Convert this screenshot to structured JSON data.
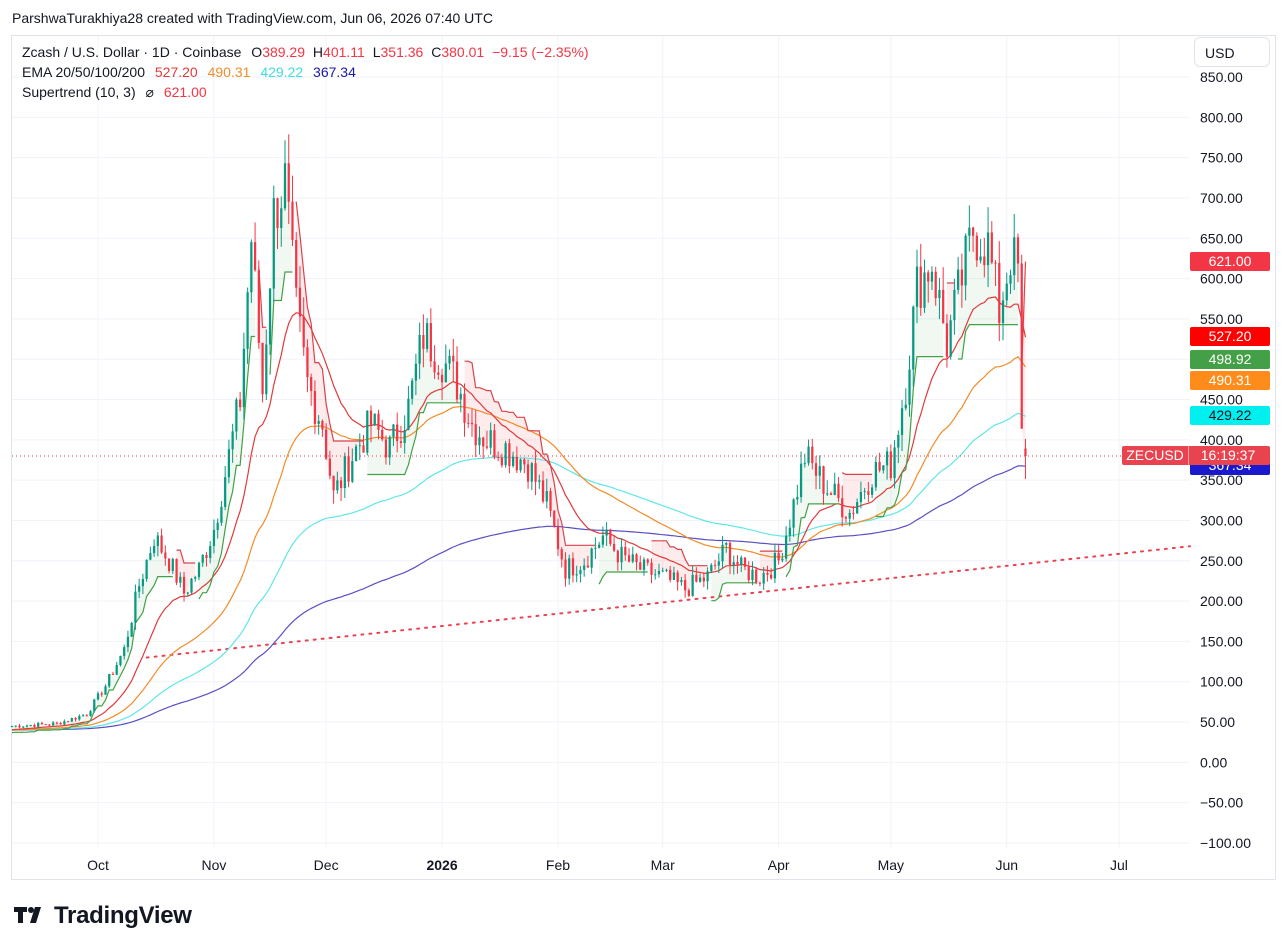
{
  "credit": "ParshwaTurakhiya28 created with TradingView.com, Jun 06, 2026 07:40 UTC",
  "legend": {
    "symbol": "Zcash / U.S. Dollar · 1D · Coinbase",
    "o_label": "O",
    "o_value": "389.29",
    "h_label": "H",
    "h_value": "401.11",
    "l_label": "L",
    "l_value": "351.36",
    "c_label": "C",
    "c_value": "380.01",
    "change": "−9.15 (−2.35%)",
    "ema_label": "EMA 20/50/100/200",
    "ema20": "527.20",
    "ema50": "490.31",
    "ema100": "429.22",
    "ema200": "367.34",
    "st_label": "Supertrend (10, 3)",
    "st_symbol": "⌀",
    "st_value": "621.00"
  },
  "currency": "USD",
  "price_tags": [
    {
      "text": "621.00",
      "color": "#f23645",
      "value": 621
    },
    {
      "text": "527.20",
      "color": "#ff0000",
      "value": 527.2
    },
    {
      "text": "498.92",
      "color": "#43a047",
      "value": 498.92
    },
    {
      "text": "490.31",
      "color": "#ff8c1a",
      "value": 490.31
    },
    {
      "text": "429.22",
      "color": "#00f0f0",
      "value": 429.22
    },
    {
      "text": "367.34",
      "color": "#1a1acc",
      "value": 367.34
    }
  ],
  "last_price_tag": {
    "symbol": "ZECUSD",
    "countdown": "16:19:37",
    "value": 380.01
  },
  "brand": "TradingView",
  "colors": {
    "up": "#089981",
    "down": "#f23645",
    "ema20": "#e03a3a",
    "ema50": "#f28c28",
    "ema100": "#61e6e6",
    "ema200": "#5b4fc4",
    "st_up": "#43a047",
    "st_down": "#d9434a",
    "trendline": "#e8434f"
  },
  "chart_data": {
    "type": "candlestick",
    "title": "Zcash / U.S. Dollar · 1D · Coinbase",
    "y_axis": {
      "min": -100,
      "max": 850,
      "ticks": [
        "850.00",
        "800.00",
        "750.00",
        "700.00",
        "650.00",
        "600.00",
        "550.00",
        "500.00",
        "450.00",
        "400.00",
        "350.00",
        "300.00",
        "250.00",
        "200.00",
        "150.00",
        "100.00",
        "50.00",
        "0.00",
        "−50.00",
        "−100.00"
      ]
    },
    "x_axis": {
      "labels": [
        "Oct",
        "Nov",
        "Dec",
        "2026",
        "Feb",
        "Mar",
        "Apr",
        "May",
        "Jun",
        "Jul"
      ],
      "start": "2025-09-08",
      "end": "2026-07-20"
    },
    "close_path": [
      [
        "2025-09-08",
        45
      ],
      [
        "2025-09-20",
        48
      ],
      [
        "2025-09-28",
        60
      ],
      [
        "2025-10-03",
        95
      ],
      [
        "2025-10-08",
        140
      ],
      [
        "2025-10-12",
        220
      ],
      [
        "2025-10-16",
        280
      ],
      [
        "2025-10-20",
        250
      ],
      [
        "2025-10-24",
        210
      ],
      [
        "2025-10-28",
        240
      ],
      [
        "2025-11-01",
        290
      ],
      [
        "2025-11-05",
        380
      ],
      [
        "2025-11-08",
        450
      ],
      [
        "2025-11-11",
        650
      ],
      [
        "2025-11-14",
        460
      ],
      [
        "2025-11-17",
        680
      ],
      [
        "2025-11-20",
        720
      ],
      [
        "2025-11-23",
        560
      ],
      [
        "2025-11-26",
        470
      ],
      [
        "2025-11-30",
        420
      ],
      [
        "2025-12-03",
        330
      ],
      [
        "2025-12-08",
        380
      ],
      [
        "2025-12-13",
        420
      ],
      [
        "2025-12-18",
        390
      ],
      [
        "2025-12-23",
        440
      ],
      [
        "2025-12-27",
        530
      ],
      [
        "2026-01-01",
        500
      ],
      [
        "2026-01-05",
        470
      ],
      [
        "2026-01-09",
        420
      ],
      [
        "2026-01-13",
        400
      ],
      [
        "2026-01-18",
        390
      ],
      [
        "2026-01-24",
        370
      ],
      [
        "2026-01-29",
        320
      ],
      [
        "2026-02-03",
        240
      ],
      [
        "2026-02-08",
        250
      ],
      [
        "2026-02-13",
        280
      ],
      [
        "2026-02-18",
        255
      ],
      [
        "2026-02-23",
        240
      ],
      [
        "2026-03-01",
        230
      ],
      [
        "2026-03-07",
        215
      ],
      [
        "2026-03-13",
        230
      ],
      [
        "2026-03-18",
        265
      ],
      [
        "2026-03-22",
        240
      ],
      [
        "2026-03-27",
        230
      ],
      [
        "2026-04-01",
        250
      ],
      [
        "2026-04-05",
        320
      ],
      [
        "2026-04-08",
        380
      ],
      [
        "2026-04-14",
        340
      ],
      [
        "2026-04-20",
        310
      ],
      [
        "2026-04-26",
        360
      ],
      [
        "2026-05-01",
        370
      ],
      [
        "2026-05-05",
        470
      ],
      [
        "2026-05-08",
        590
      ],
      [
        "2026-05-12",
        620
      ],
      [
        "2026-05-16",
        520
      ],
      [
        "2026-05-20",
        600
      ],
      [
        "2026-05-23",
        660
      ],
      [
        "2026-05-27",
        640
      ],
      [
        "2026-05-30",
        560
      ],
      [
        "2026-06-02",
        630
      ],
      [
        "2026-06-04",
        610
      ],
      [
        "2026-06-05",
        400
      ],
      [
        "2026-06-06",
        380
      ]
    ],
    "last_candle": {
      "date": "2026-06-06",
      "open": 389.29,
      "high": 401.11,
      "low": 351.36,
      "close": 380.01
    },
    "ema_last": {
      "ema20": 527.2,
      "ema50": 490.31,
      "ema100": 429.22,
      "ema200": 367.34
    },
    "supertrend_last": 621.0,
    "trendline": [
      [
        "2025-10-14",
        130
      ],
      [
        "2026-07-20",
        268
      ]
    ]
  }
}
